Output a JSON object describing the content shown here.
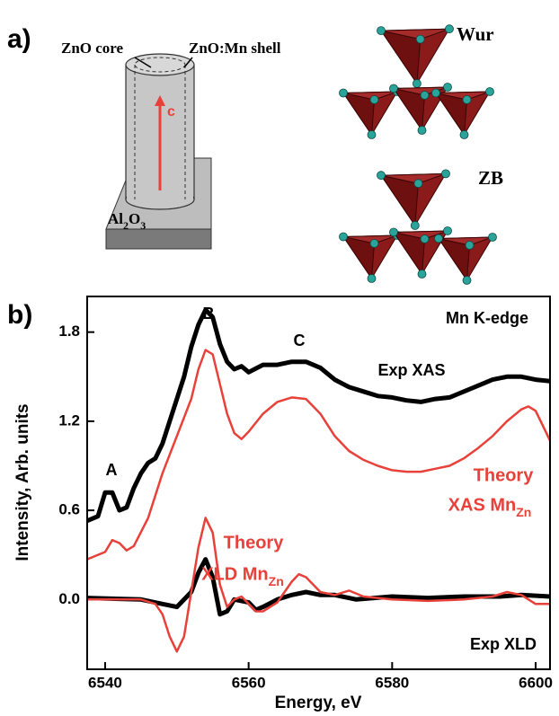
{
  "panel_a": {
    "label": "a)",
    "core": "ZnO core",
    "shell": "ZnO:Mn shell",
    "axis": "c",
    "substrate": [
      "Al",
      "2",
      "O",
      "3"
    ],
    "wurtzite": "Wur",
    "zincblende": "ZB"
  },
  "chart_data": {
    "type": "line",
    "panel_label": "b)",
    "xlabel": "Energy, eV",
    "ylabel": "Intensity, Arb. units",
    "xlim": [
      6537.5,
      6602
    ],
    "ylim": [
      -0.47,
      2.04
    ],
    "xticks": [
      6540,
      6560,
      6580,
      6600
    ],
    "yticks": [
      {
        "value": 0,
        "label": "0.0"
      },
      0.6,
      1.2,
      1.8
    ],
    "series": [
      {
        "color": "#000000",
        "width": 5,
        "x": [
          6537.5,
          6539,
          6540,
          6541,
          6542,
          6543,
          6544,
          6545,
          6546,
          6547,
          6548,
          6549,
          6550,
          6551,
          6552,
          6553,
          6554,
          6555,
          6556,
          6557,
          6558,
          6559,
          6560,
          6562,
          6564,
          6566,
          6568,
          6570,
          6572,
          6574,
          6576,
          6578,
          6580,
          6582,
          6584,
          6586,
          6588,
          6590,
          6592,
          6594,
          6596,
          6598,
          6600,
          6602
        ],
        "values": [
          0.53,
          0.56,
          0.72,
          0.72,
          0.6,
          0.62,
          0.75,
          0.85,
          0.92,
          0.95,
          1.05,
          1.2,
          1.35,
          1.5,
          1.7,
          1.85,
          1.95,
          1.9,
          1.72,
          1.6,
          1.55,
          1.57,
          1.53,
          1.58,
          1.58,
          1.6,
          1.6,
          1.56,
          1.48,
          1.43,
          1.4,
          1.37,
          1.36,
          1.34,
          1.33,
          1.35,
          1.36,
          1.4,
          1.44,
          1.48,
          1.5,
          1.5,
          1.48,
          1.47
        ]
      },
      {
        "color": "#e8413a",
        "width": 2.5,
        "x": [
          6537.5,
          6540,
          6541,
          6542,
          6543,
          6544,
          6546,
          6548,
          6550,
          6552,
          6553,
          6554,
          6555,
          6556,
          6557,
          6558,
          6559,
          6560,
          6562,
          6564,
          6566,
          6568,
          6570,
          6572,
          6574,
          6576,
          6578,
          6580,
          6582,
          6584,
          6586,
          6588,
          6590,
          6592,
          6594,
          6596,
          6598,
          6599,
          6600,
          6601,
          6602
        ],
        "values": [
          0.27,
          0.32,
          0.4,
          0.38,
          0.33,
          0.36,
          0.55,
          0.85,
          1.1,
          1.35,
          1.55,
          1.68,
          1.65,
          1.45,
          1.25,
          1.12,
          1.08,
          1.13,
          1.25,
          1.33,
          1.36,
          1.35,
          1.25,
          1.1,
          1.0,
          0.94,
          0.9,
          0.87,
          0.86,
          0.86,
          0.88,
          0.9,
          0.95,
          1.02,
          1.1,
          1.2,
          1.28,
          1.3,
          1.27,
          1.17,
          1.07
        ]
      },
      {
        "color": "#000000",
        "width": 5,
        "x": [
          6537.5,
          6545,
          6548,
          6550,
          6552,
          6553,
          6554,
          6555,
          6556,
          6557,
          6558,
          6560,
          6561,
          6562,
          6564,
          6566,
          6568,
          6570,
          6572,
          6575,
          6580,
          6585,
          6590,
          6595,
          6598,
          6602
        ],
        "values": [
          0.01,
          0.0,
          -0.03,
          -0.05,
          0.05,
          0.18,
          0.27,
          0.15,
          -0.1,
          -0.08,
          0.0,
          -0.02,
          -0.07,
          -0.05,
          0.0,
          0.03,
          0.05,
          0.03,
          0.03,
          0.0,
          0.02,
          0.01,
          0.02,
          0.02,
          0.03,
          0.02
        ]
      },
      {
        "color": "#e8413a",
        "width": 2.5,
        "x": [
          6537.5,
          6545,
          6547,
          6548,
          6549,
          6550,
          6551,
          6552,
          6553,
          6554,
          6555,
          6556,
          6557,
          6558,
          6559,
          6560,
          6561,
          6562,
          6564,
          6566,
          6567,
          6568,
          6570,
          6572,
          6574,
          6576,
          6580,
          6585,
          6590,
          6594,
          6596,
          6598,
          6600,
          6602
        ],
        "values": [
          0.0,
          0.0,
          -0.03,
          -0.1,
          -0.25,
          -0.35,
          -0.25,
          0.05,
          0.35,
          0.55,
          0.45,
          0.1,
          -0.05,
          0.0,
          0.02,
          -0.03,
          -0.08,
          -0.08,
          -0.02,
          0.12,
          0.17,
          0.15,
          0.05,
          0.03,
          0.06,
          0.02,
          0.0,
          -0.01,
          0.0,
          0.02,
          0.05,
          0.03,
          -0.03,
          -0.03
        ]
      }
    ],
    "annotations": [
      {
        "lines": [
          "A"
        ],
        "color": "#000000"
      },
      {
        "lines": [
          "B"
        ],
        "color": "#000000"
      },
      {
        "lines": [
          "C"
        ],
        "color": "#000000"
      },
      {
        "lines": [
          "Mn K-edge"
        ],
        "color": "#000000"
      },
      {
        "lines": [
          "Exp XAS"
        ],
        "color": "#000000"
      },
      {
        "lines": [
          "Theory",
          "XAS Mn"
        ],
        "sub": "Zn",
        "color": "#e8413a"
      },
      {
        "lines": [
          "Theory",
          "XLD Mn"
        ],
        "sub": "Zn",
        "color": "#e8413a"
      },
      {
        "lines": [
          "Exp XLD"
        ],
        "color": "#000000"
      }
    ]
  }
}
